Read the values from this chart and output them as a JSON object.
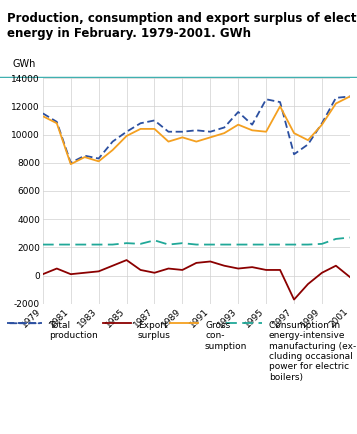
{
  "title_line1": "Production, consumption and export surplus of electric",
  "title_line2": "energy in February. 1979-2001. GWh",
  "ylabel": "GWh",
  "years": [
    1979,
    1980,
    1981,
    1982,
    1983,
    1984,
    1985,
    1986,
    1987,
    1988,
    1989,
    1990,
    1991,
    1992,
    1993,
    1994,
    1995,
    1996,
    1997,
    1998,
    1999,
    2000,
    2001
  ],
  "total_production": [
    11500,
    10900,
    8000,
    8500,
    8300,
    9500,
    10200,
    10800,
    11000,
    10200,
    10200,
    10300,
    10200,
    10500,
    11600,
    10700,
    12500,
    12300,
    8600,
    9300,
    10800,
    12600,
    12700
  ],
  "export_surplus": [
    100,
    500,
    100,
    200,
    300,
    700,
    1100,
    400,
    200,
    500,
    400,
    900,
    1000,
    700,
    500,
    600,
    400,
    400,
    -1700,
    -600,
    200,
    700,
    -100
  ],
  "gross_consumption": [
    11300,
    10800,
    7900,
    8400,
    8100,
    8900,
    9900,
    10400,
    10400,
    9500,
    9800,
    9500,
    9800,
    10100,
    10700,
    10300,
    10200,
    12000,
    10100,
    9600,
    10700,
    12200,
    12700
  ],
  "energy_intensive": [
    2200,
    2200,
    2200,
    2200,
    2200,
    2200,
    2300,
    2250,
    2500,
    2200,
    2300,
    2200,
    2200,
    2200,
    2200,
    2200,
    2200,
    2200,
    2200,
    2200,
    2250,
    2600,
    2700
  ],
  "total_production_color": "#2b4fa0",
  "export_surplus_color": "#8b0000",
  "gross_consumption_color": "#f4a020",
  "energy_intensive_color": "#20a898",
  "ylim": [
    -2000,
    14000
  ],
  "yticks": [
    -2000,
    0,
    2000,
    4000,
    6000,
    8000,
    10000,
    12000,
    14000
  ],
  "xticks": [
    1979,
    1981,
    1983,
    1985,
    1987,
    1989,
    1991,
    1993,
    1995,
    1997,
    1999,
    2001
  ],
  "bg_color": "#ffffff",
  "title_bg_color": "#f0f8f8",
  "grid_color": "#d0d0d0",
  "teal_bar_color": "#40b0b0",
  "legend_labels": [
    "Total\nproduction",
    "Export\nsurplus",
    "Gross\ncon-\nsumption",
    "Consumption in\nenergy-intensive\nmanufacturing (ex-\ncluding occasional\npower for electric\nboilers)"
  ]
}
